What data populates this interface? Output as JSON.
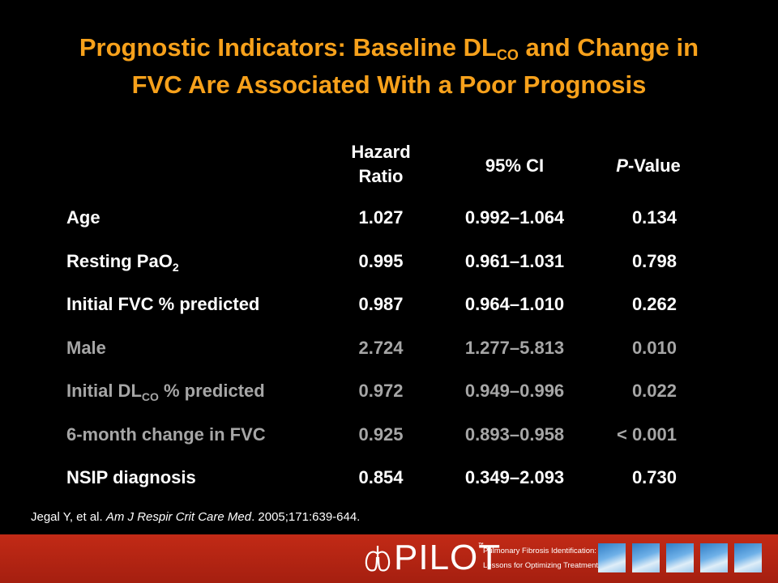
{
  "title": {
    "line1_pre": "Prognostic Indicators: Baseline DL",
    "line1_sub": "CO",
    "line1_post": " and Change in",
    "line2": "FVC Are Associated With a Poor Prognosis"
  },
  "table": {
    "headers": {
      "hr_line1": "Hazard",
      "hr_line2": "Ratio",
      "ci": "95% CI",
      "p_italic": "P",
      "p_rest": "-Value"
    },
    "rows": [
      {
        "label": "Age",
        "hr": "1.027",
        "ci": "0.992–1.064",
        "p": "0.134",
        "tone": "white"
      },
      {
        "label": "Resting PaO",
        "label_sub": "2",
        "hr": "0.995",
        "ci": "0.961–1.031",
        "p": "0.798",
        "tone": "white"
      },
      {
        "label": "Initial FVC % predicted",
        "hr": "0.987",
        "ci": "0.964–1.010",
        "p": "0.262",
        "tone": "white"
      },
      {
        "label": "Male",
        "hr": "2.724",
        "ci": "1.277–5.813",
        "p": "0.010",
        "tone": "gray"
      },
      {
        "label": "Initial DL",
        "label_sub": "CO",
        "label_post": " % predicted",
        "hr": "0.972",
        "ci": "0.949–0.996",
        "p": "0.022",
        "tone": "gray"
      },
      {
        "label": "6-month change in FVC",
        "hr": "0.925",
        "ci": "0.893–0.958",
        "p": "< 0.001",
        "tone": "gray"
      },
      {
        "label": "NSIP diagnosis",
        "hr": "0.854",
        "ci": "0.349–2.093",
        "p": "0.730",
        "tone": "white"
      }
    ]
  },
  "citation": {
    "authors": "Jegal Y, et al. ",
    "journal": "Am J Respir Crit Care Med",
    "rest": ". 2005;171:639-644."
  },
  "footer": {
    "logo_text": "PILOT",
    "trademark": "™",
    "tagline1": "Pulmonary Fibrosis Identification:",
    "tagline2": "Lessons for Optimizing Treatment"
  },
  "colors": {
    "title": "#f7a11b",
    "footer": "#c22a16",
    "gray_text": "#a6a6a6"
  }
}
